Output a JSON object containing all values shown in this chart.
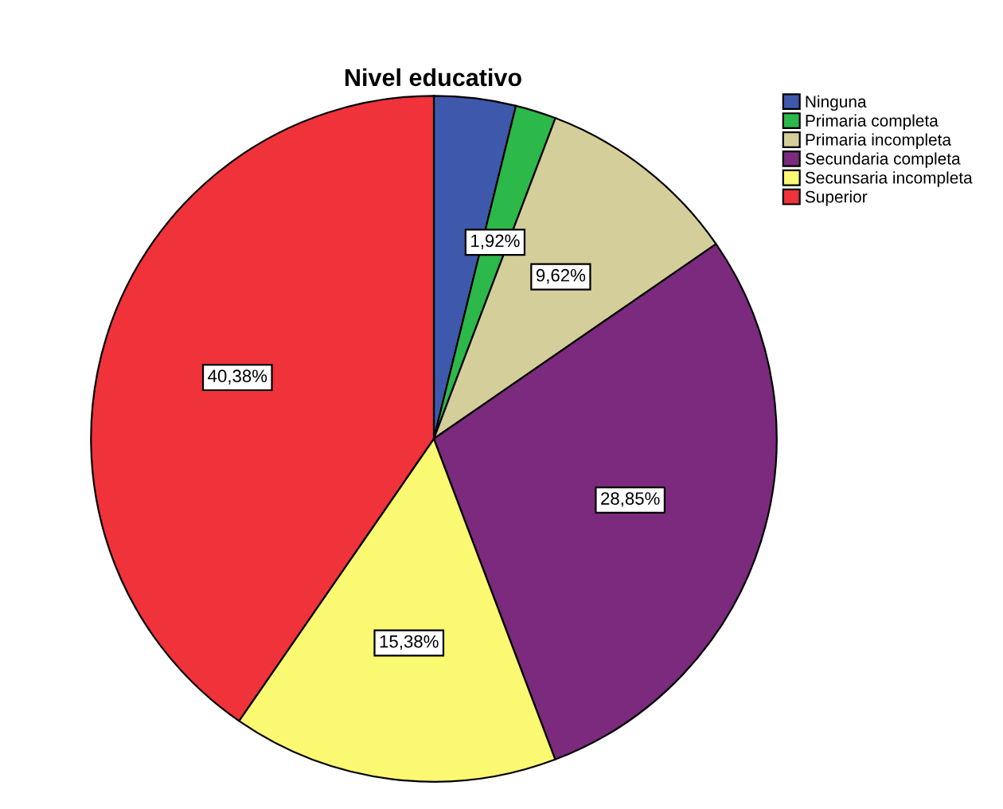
{
  "chart_data": {
    "type": "pie",
    "title": "Nivel educativo",
    "categories": [
      "Ninguna",
      "Primaria completa",
      "Primaria incompleta",
      "Secundaria completa",
      "Secunsaria incompleta",
      "Superior"
    ],
    "values": [
      3.85,
      1.92,
      9.62,
      28.85,
      15.38,
      40.38
    ],
    "value_labels": [
      null,
      "1,92%",
      "9,62%",
      "28,85%",
      "15,38%",
      "40,38%"
    ],
    "colors": [
      "#3e58ac",
      "#2db84a",
      "#d4cf9a",
      "#7b2a7e",
      "#fbf872",
      "#f0323a"
    ],
    "legend": "top right"
  }
}
